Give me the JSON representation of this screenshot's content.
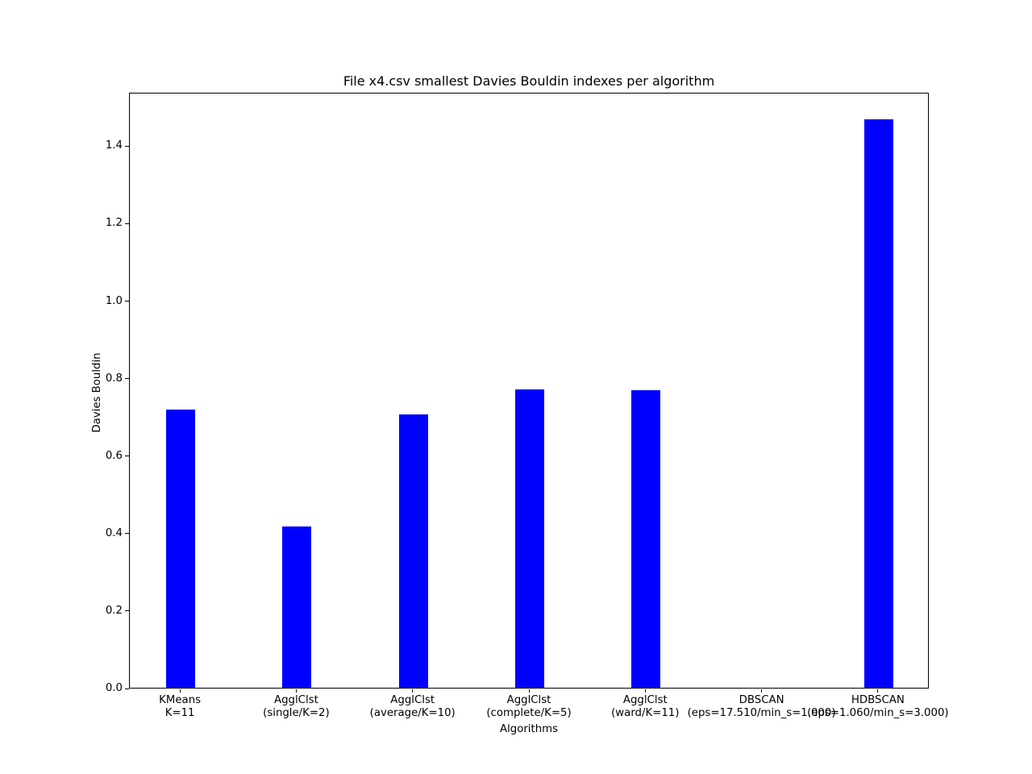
{
  "figure": {
    "background": "#ffffff"
  },
  "chart_data": {
    "type": "bar",
    "title": "File x4.csv smallest Davies Bouldin indexes per algorithm",
    "xlabel": "Algorithms",
    "ylabel": "Davies Bouldin",
    "categories": [
      [
        "KMeans",
        "K=11"
      ],
      [
        "AgglClst",
        "(single/K=2)"
      ],
      [
        "AgglClst",
        "(average/K=10)"
      ],
      [
        "AgglClst",
        "(complete/K=5)"
      ],
      [
        "AgglClst",
        "(ward/K=11)"
      ],
      [
        "DBSCAN",
        "(eps=17.510/min_s=1.000)"
      ],
      [
        "HDBSCAN",
        "(eps=1.060/min_s=3.000)"
      ]
    ],
    "values": [
      0.718,
      0.417,
      0.705,
      0.771,
      0.769,
      0.0,
      1.467
    ],
    "bar_color": "#0000ff",
    "bar_width_units": 0.25,
    "ylim": [
      0,
      1.538
    ],
    "yticks": [
      "0.0",
      "0.2",
      "0.4",
      "0.6",
      "0.8",
      "1.0",
      "1.2",
      "1.4"
    ],
    "xlim": [
      -0.4375,
      6.4375
    ],
    "grid": false,
    "legend": "none",
    "axis_color": "#000000",
    "text_color": "#000000"
  }
}
